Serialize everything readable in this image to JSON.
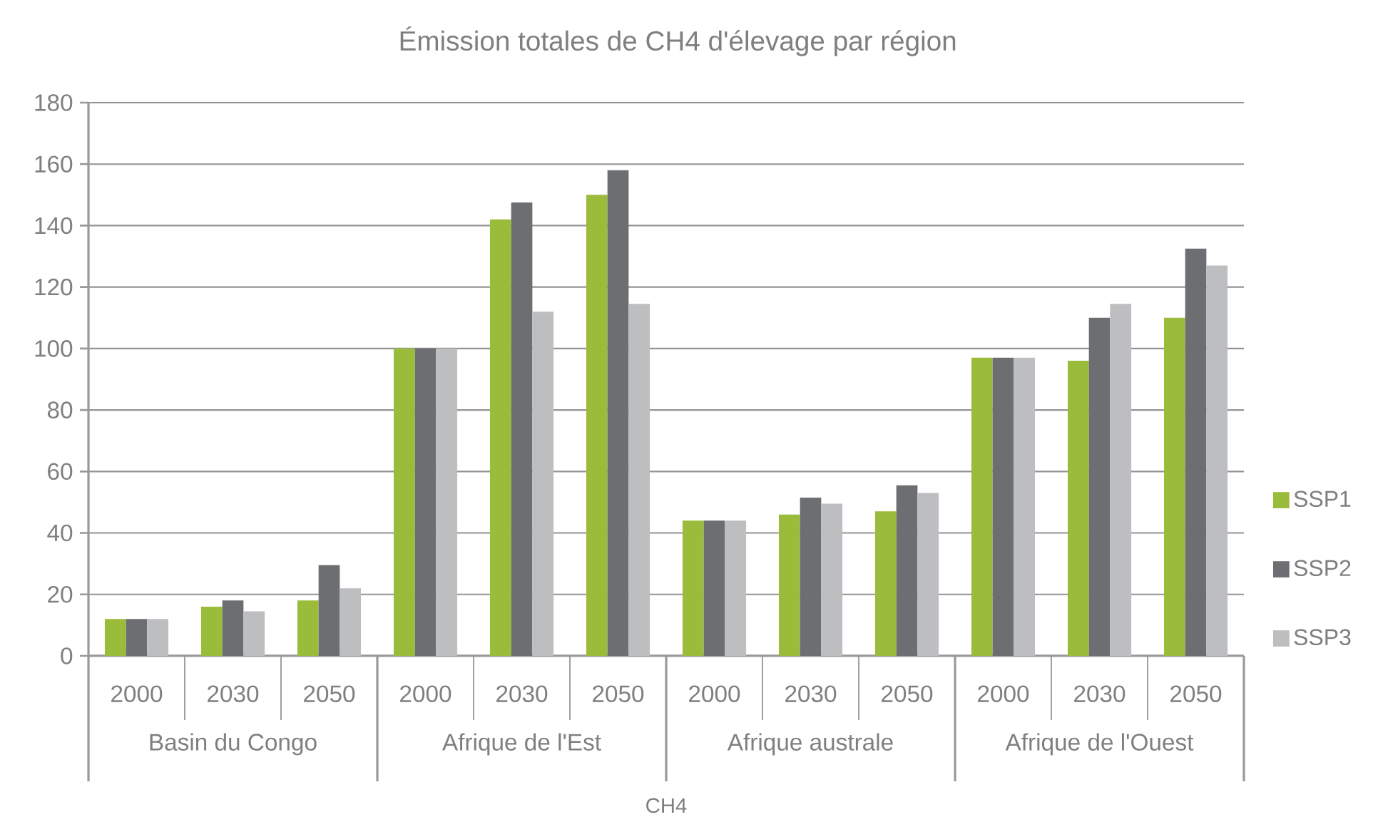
{
  "chart_data": {
    "type": "bar",
    "title": "Émission totales de CH4 d'élevage par région",
    "xlabel": "CH4",
    "categories": [
      "2000",
      "2030",
      "2050",
      "2000",
      "2030",
      "2050",
      "2000",
      "2030",
      "2050",
      "2000",
      "2030",
      "2050"
    ],
    "annotations": [
      "Basin du Congo",
      "Afrique de l'Est",
      "Afrique australe",
      "Afrique de l'Ouest"
    ],
    "series": [
      {
        "name": "SSP1",
        "color": "#9bbb3b",
        "values": [
          12,
          16,
          18,
          100,
          142,
          150,
          44,
          46,
          47,
          97,
          96,
          110
        ]
      },
      {
        "name": "SSP2",
        "color": "#6d6e71",
        "values": [
          12,
          18,
          29.5,
          100,
          147.5,
          158,
          44,
          51.5,
          55.5,
          97,
          110,
          132.5
        ]
      },
      {
        "name": "SSP3",
        "color": "#bdbec0",
        "values": [
          12,
          14.5,
          22,
          100,
          112,
          114.5,
          44,
          49.5,
          53,
          97,
          114.5,
          127
        ]
      }
    ],
    "ylim": [
      0,
      180
    ],
    "yticks": [
      0,
      20,
      40,
      60,
      80,
      100,
      120,
      140,
      160,
      180
    ],
    "grid": "y",
    "legend": "right"
  }
}
